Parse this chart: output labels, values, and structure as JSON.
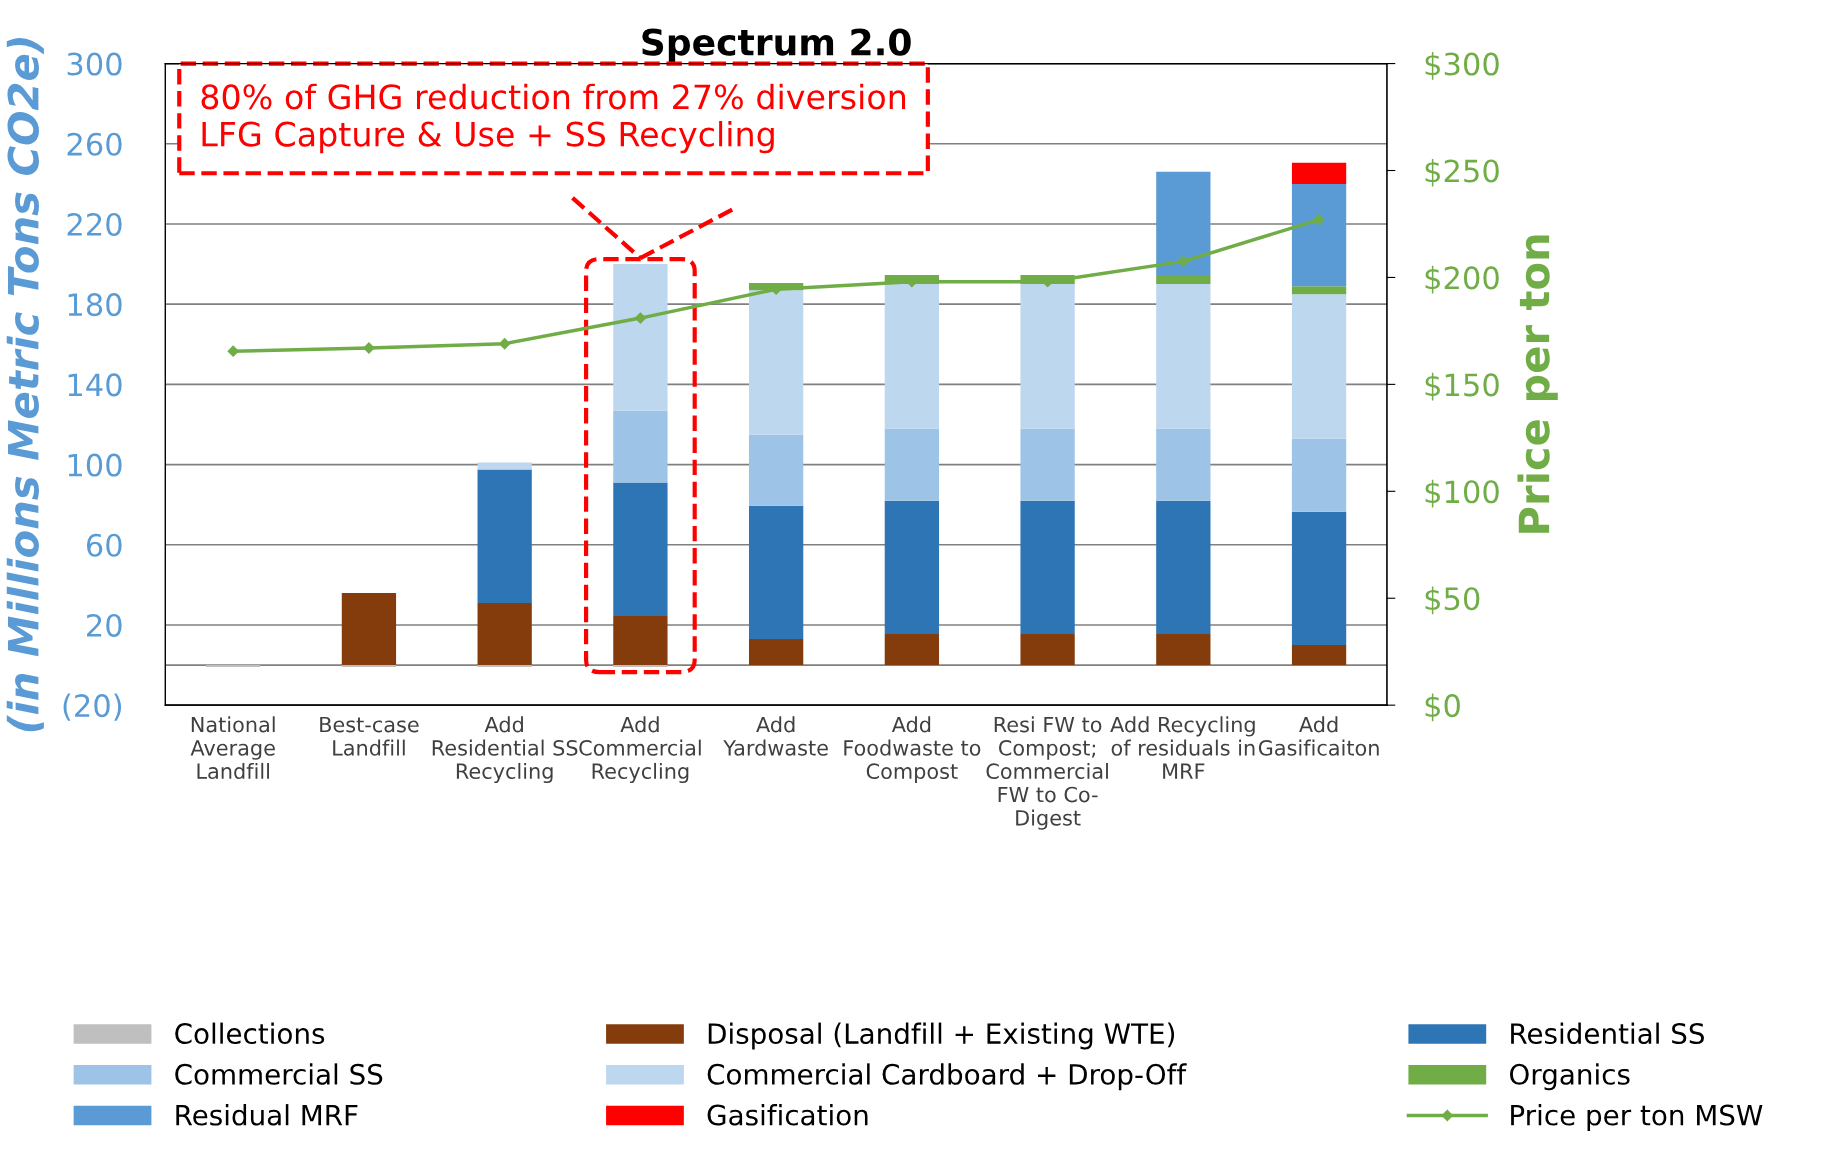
{
  "chart_data": {
    "type": "bar",
    "stacked": true,
    "title": "Spectrum 2.0",
    "ylabel": "(in Millions Metric Tons CO2e)",
    "y2label": "Price per ton",
    "categories": [
      "National\nAverage\nLandfill",
      "Best-case\nLandfill",
      "Add\nResidential SS\nRecycling",
      "Add\nCommercial\nRecycling",
      "Add\nYardwaste",
      "Add\nFoodwaste to\nCompost",
      "Resi FW to\nCompost;\nCommercial\nFW to Co-\nDigest",
      "Add Recycling\nof residuals in\nMRF",
      "Add\nGasificaiton"
    ],
    "series": [
      {
        "name": "Collections",
        "color": "#bfbfbf",
        "values": [
          -1,
          -1,
          -1,
          -1,
          null,
          null,
          null,
          null,
          null
        ]
      },
      {
        "name": "Disposal (Landfill + Existing WTE)",
        "color": "#843c0c",
        "values": [
          null,
          36,
          31,
          24.5,
          13,
          15.5,
          15.5,
          15.5,
          10
        ]
      },
      {
        "name": "Residential SS",
        "color": "#2e75b6",
        "values": [
          null,
          null,
          66.5,
          66.5,
          66.5,
          66.5,
          66.5,
          66.5,
          66.5
        ]
      },
      {
        "name": "Commercial SS",
        "color": "#9dc3e6",
        "values": [
          null,
          null,
          null,
          36,
          35.5,
          36,
          36,
          36,
          36.5
        ]
      },
      {
        "name": "Commercial Cardboard + Drop-Off",
        "color": "#bdd7ee",
        "values": [
          null,
          null,
          3.5,
          73,
          72,
          72,
          72,
          72,
          72
        ]
      },
      {
        "name": "Organics",
        "color": "#70ad47",
        "values": [
          null,
          null,
          null,
          null,
          3.5,
          4.5,
          4.5,
          4.5,
          4
        ]
      },
      {
        "name": "Residual MRF",
        "color": "#5b9bd5",
        "values": [
          null,
          null,
          null,
          null,
          null,
          null,
          null,
          51.5,
          51
        ]
      },
      {
        "name": "Gasification",
        "color": "#ff0000",
        "values": [
          null,
          null,
          null,
          null,
          null,
          null,
          null,
          null,
          10.5
        ]
      },
      {
        "name": "Price per ton MSW",
        "type": "line",
        "axis": "y2",
        "color": "#70ad47",
        "marker": "diamond",
        "values": [
          165.5,
          167,
          169,
          181,
          194.5,
          198,
          198,
          207.5,
          227
        ]
      }
    ],
    "ylim": [
      -20,
      300
    ],
    "yticks": [
      {
        "value": -20,
        "label": "(20)"
      },
      20,
      60,
      100,
      140,
      180,
      220,
      260,
      300
    ],
    "y2lim": [
      0,
      300
    ],
    "y2ticks": [
      {
        "value": 0,
        "label": "$0"
      },
      {
        "value": 50,
        "label": "$50"
      },
      {
        "value": 100,
        "label": "$100"
      },
      {
        "value": 150,
        "label": "$150"
      },
      {
        "value": 200,
        "label": "$200"
      },
      {
        "value": 250,
        "label": "$250"
      },
      {
        "value": 300,
        "label": "$300"
      }
    ],
    "grid": "y",
    "legend": "bottom",
    "annotations": [
      "80% of GHG reduction from 27% diversion LFG Capture & Use + SS Recycling"
    ]
  }
}
